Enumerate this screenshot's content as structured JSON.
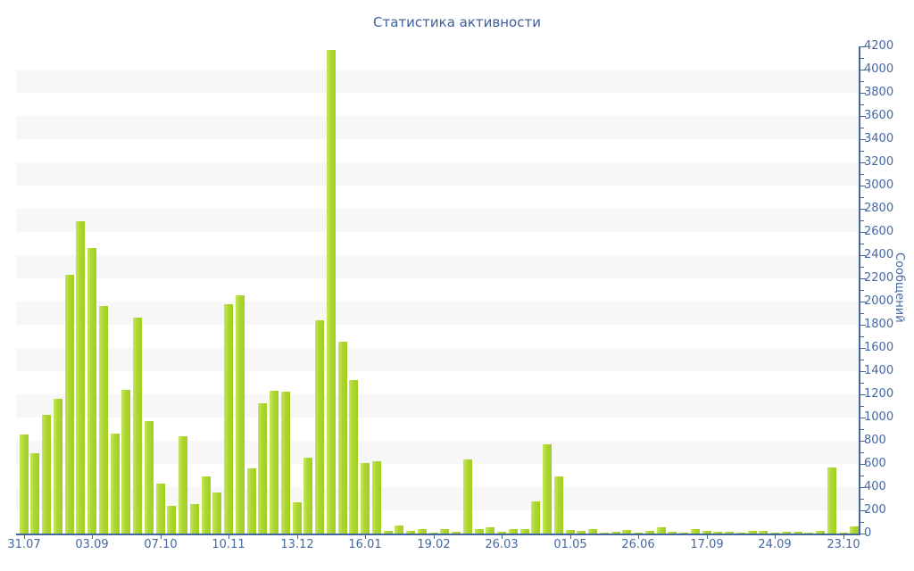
{
  "chart_data": {
    "type": "bar",
    "title": "Статистика активности",
    "ylabel": "Сообщений",
    "xlabel": "",
    "ylim": [
      0,
      4200
    ],
    "y_tick_step": 200,
    "y_minor_tick_step": 100,
    "grid": "horizontal-stripes",
    "legend": "none",
    "y_tick_labels": [
      "0",
      "200",
      "400",
      "600",
      "800",
      "1000",
      "1200",
      "1400",
      "1600",
      "1800",
      "2000",
      "2200",
      "2400",
      "2600",
      "2800",
      "3000",
      "3200",
      "3400",
      "3600",
      "3800",
      "4000",
      "4200"
    ],
    "x_tick_labels": [
      "31.07",
      "03.09",
      "07.10",
      "10.11",
      "13.12",
      "16.01",
      "19.02",
      "26.03",
      "01.05",
      "26.06",
      "17.09",
      "24.09",
      "23.10"
    ],
    "x_tick_bar_indices": [
      0,
      6,
      12,
      18,
      24,
      30,
      36,
      42,
      48,
      54,
      60,
      66,
      72
    ],
    "values": [
      850,
      690,
      1020,
      1160,
      2230,
      2690,
      2460,
      1960,
      860,
      1240,
      1860,
      970,
      430,
      240,
      840,
      255,
      490,
      355,
      1980,
      2050,
      560,
      1125,
      1230,
      1220,
      270,
      650,
      1840,
      4170,
      1655,
      1320,
      610,
      620,
      25,
      70,
      20,
      40,
      10,
      35,
      15,
      640,
      40,
      50,
      15,
      35,
      35,
      275,
      770,
      490,
      30,
      20,
      35,
      10,
      15,
      30,
      10,
      25,
      55,
      15,
      10,
      40,
      25,
      18,
      15,
      10,
      20,
      25,
      8,
      18,
      13,
      5,
      20,
      570,
      10,
      60
    ],
    "colors": {
      "bar": "#abd732",
      "bar_light_edge": "#c9e65c",
      "bar_dark_edge": "#a2ce20",
      "axis": "#44689d",
      "tick_text": "#4668a0",
      "title_text": "#3c5f9c",
      "stripe": "#f7f7f7",
      "background": "#ffffff"
    }
  }
}
